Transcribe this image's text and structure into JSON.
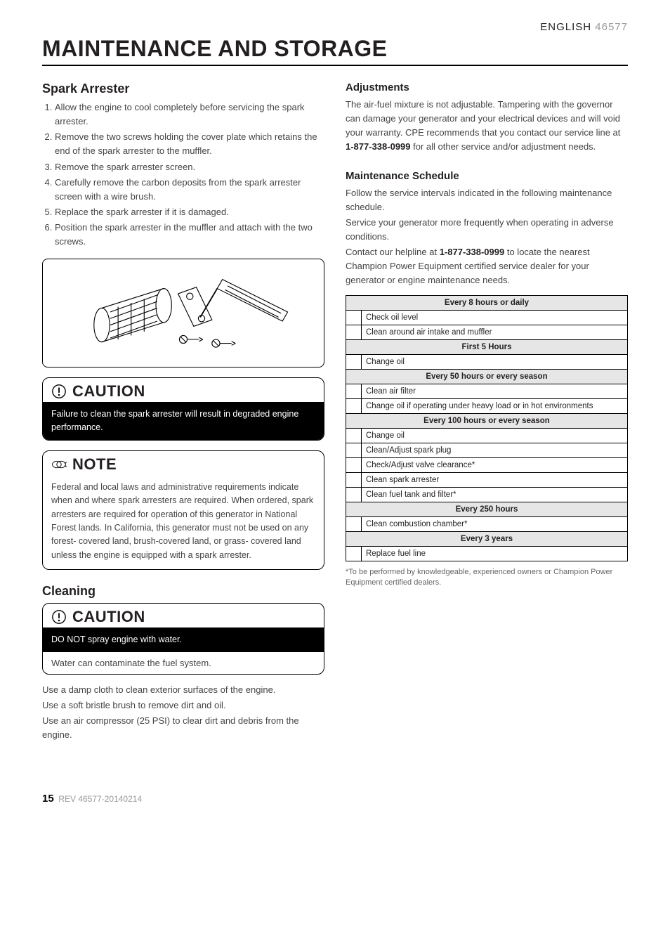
{
  "header": {
    "language": "ENGLISH",
    "partNumber": "46577"
  },
  "pageTitle": "MAINTENANCE AND STORAGE",
  "leftColumn": {
    "sparkArrester": {
      "heading": "Spark Arrester",
      "steps": [
        "Allow the engine to cool completely before servicing the spark arrester.",
        "Remove the two screws holding the cover plate which retains the end of the spark arrester to the muffler.",
        "Remove the spark arrester screen.",
        "Carefully remove the carbon deposits from the spark arrester screen with a wire brush.",
        "Replace the spark arrester if it is damaged.",
        "Position the spark arrester in the muffler and attach with the two screws."
      ]
    },
    "caution1": {
      "label": "CAUTION",
      "blackText": "Failure to clean the spark arrester will result in degraded engine performance."
    },
    "note": {
      "label": "NOTE",
      "body": "Federal and local laws and administrative requirements indicate when and where spark arresters are required. When ordered, spark arresters are required for operation of this generator in National Forest lands. In California, this generator must not be used on any forest- covered land, brush-covered land, or grass- covered land unless the engine is equipped with a spark arrester."
    },
    "cleaning": {
      "heading": "Cleaning",
      "caution": {
        "label": "CAUTION",
        "blackText": "DO NOT spray engine with water.",
        "whiteText": "Water can contaminate the fuel system."
      },
      "body": [
        "Use a damp cloth to clean exterior surfaces of the engine.",
        "Use a soft bristle brush to remove dirt and oil.",
        "Use an air compressor (25 PSI) to clear dirt and debris from the engine."
      ]
    }
  },
  "rightColumn": {
    "adjustments": {
      "heading": "Adjustments",
      "body_pre": "The air-fuel mixture is not adjustable. Tampering with the governor can damage your generator and your electrical devices and will void your warranty. CPE recommends that you contact our service line at ",
      "phone": "1-877-338-0999",
      "body_post": " for all other service and/or adjustment needs."
    },
    "schedule": {
      "heading": "Maintenance Schedule",
      "intro1": "Follow the service intervals indicated in the following maintenance schedule.",
      "intro2": "Service your generator more frequently when operating in adverse conditions.",
      "intro3_pre": "Contact our helpline at ",
      "intro3_phone": "1-877-338-0999",
      "intro3_post": " to locate the nearest Champion Power Equipment certified service dealer for your generator or engine maintenance needs.",
      "groups": [
        {
          "header": "Every 8 hours or daily",
          "items": [
            "Check oil level",
            "Clean around air intake and muffler"
          ]
        },
        {
          "header": "First 5 Hours",
          "items": [
            "Change oil"
          ]
        },
        {
          "header": "Every 50 hours or every season",
          "items": [
            "Clean air filter",
            "Change oil if operating under heavy load or in hot environments"
          ]
        },
        {
          "header": "Every 100 hours or every season",
          "items": [
            "Change oil",
            "Clean/Adjust spark plug",
            "Check/Adjust valve clearance*",
            "Clean spark arrester",
            "Clean fuel tank and filter*"
          ]
        },
        {
          "header": "Every 250 hours",
          "items": [
            "Clean combustion chamber*"
          ]
        },
        {
          "header": "Every 3 years",
          "items": [
            "Replace fuel line"
          ]
        }
      ],
      "footnote": "*To be performed by knowledgeable, experienced owners or Champion Power Equipment certified dealers."
    }
  },
  "footer": {
    "pageNumber": "15",
    "rev": "REV 46577-20140214"
  }
}
